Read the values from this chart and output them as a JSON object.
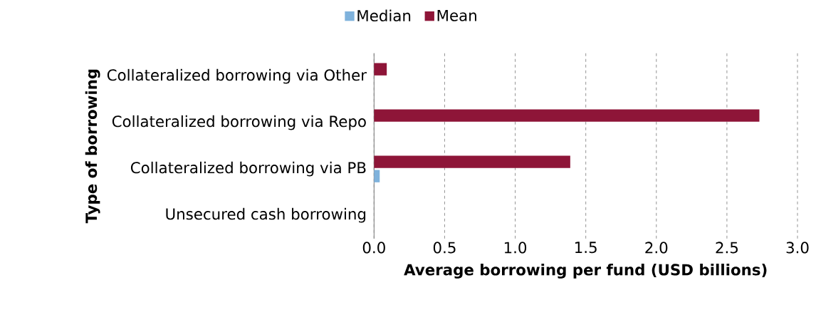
{
  "chart_data": {
    "type": "bar",
    "orientation": "horizontal",
    "categories": [
      "Collateralized borrowing via Other",
      "Collateralized borrowing via Repo",
      "Collateralized borrowing via PB",
      "Unsecured cash borrowing"
    ],
    "series": [
      {
        "name": "Median",
        "color": "#7fb2dc",
        "values": [
          0,
          0,
          0.04,
          0
        ]
      },
      {
        "name": "Mean",
        "color": "#8e1538",
        "values": [
          0.09,
          2.73,
          1.39,
          0
        ]
      }
    ],
    "xlabel": "Average borrowing per fund (USD billions)",
    "ylabel": "Type of borrowing",
    "xlim": [
      0,
      3
    ],
    "xticks": [
      {
        "value": 0,
        "label": "0.0"
      },
      0.5,
      {
        "value": 1,
        "label": "1.0"
      },
      1.5,
      {
        "value": 2,
        "label": "2.0"
      },
      2.5,
      {
        "value": 3,
        "label": "3.0"
      }
    ],
    "grid": "x",
    "legend": "top"
  }
}
